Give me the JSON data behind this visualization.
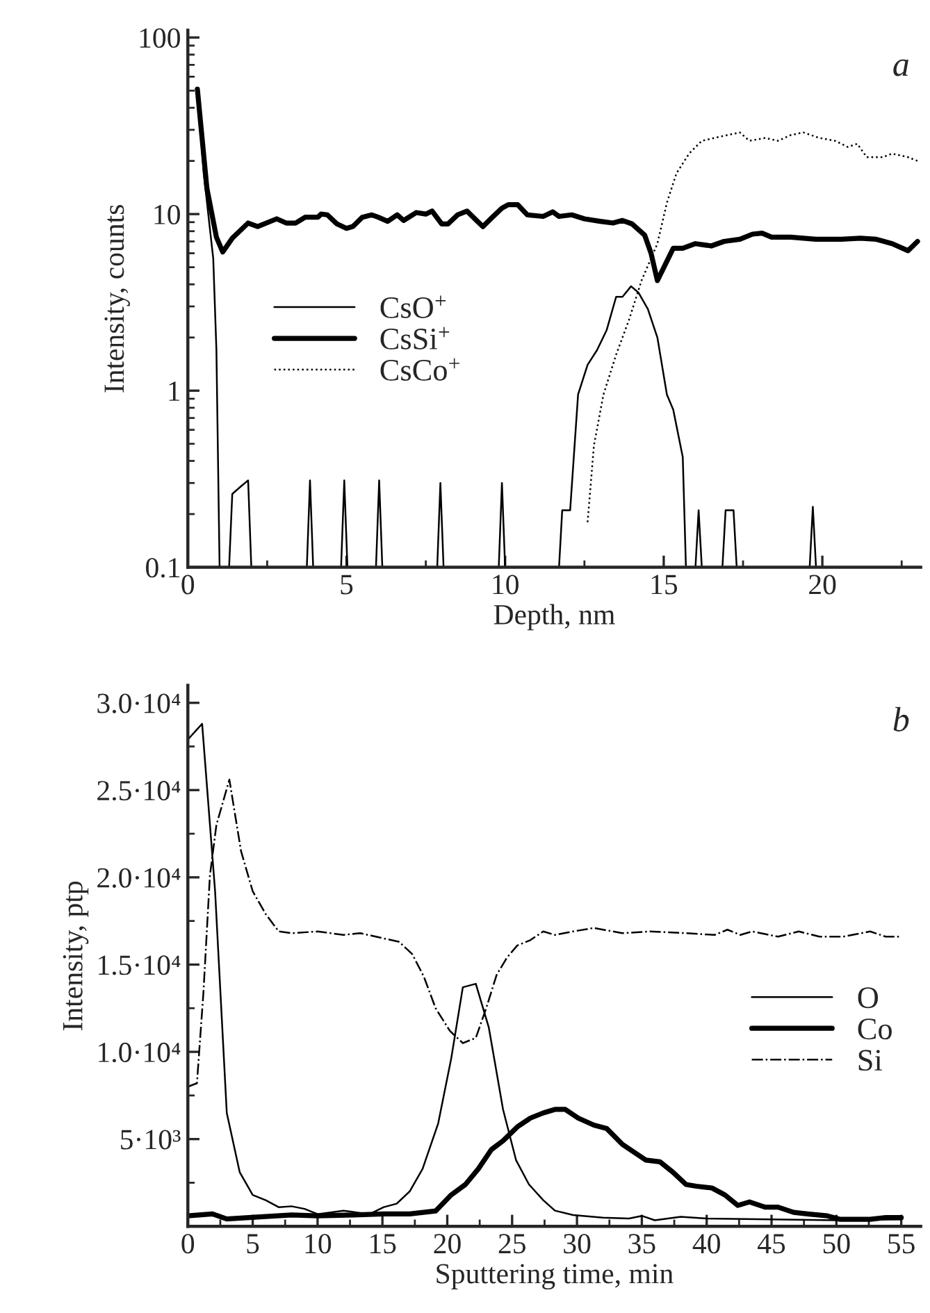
{
  "chart_data": [
    {
      "type": "line",
      "xlabel": "Depth, nm",
      "ylabel": "Intensity, counts",
      "log": "y",
      "xlim": [
        0,
        23.1
      ],
      "ylim": [
        0.1,
        110
      ],
      "xticks": [
        0,
        5,
        10,
        15,
        20
      ],
      "yticks": [
        0.1,
        1,
        10,
        100
      ],
      "legend": "center left",
      "grid": false,
      "annotations": [
        "a"
      ],
      "series": [
        {
          "name": "CsO$^{+}$",
          "color": "#000000",
          "line_style": "solid",
          "x": [
            0.3,
            0.5,
            0.8,
            0.9,
            1.0,
            1.3,
            1.4,
            1.7,
            1.9,
            2.0,
            3.75,
            3.85,
            3.95,
            4.83,
            4.93,
            5.03,
            5.93,
            6.03,
            6.13,
            7.86,
            7.96,
            8.06,
            9.8,
            9.9,
            10.0,
            11.7,
            11.8,
            12.05,
            12.3,
            12.6,
            12.9,
            13.2,
            13.5,
            13.7,
            13.97,
            14.2,
            14.5,
            14.8,
            15.1,
            15.3,
            15.6,
            15.7,
            16.0,
            16.1,
            16.2,
            16.85,
            16.95,
            17.2,
            17.3,
            19.6,
            19.7,
            19.8
          ],
          "values": [
            51,
            17,
            5.6,
            1.7,
            0.1,
            0.1,
            0.26,
            0.29,
            0.31,
            0.1,
            0.1,
            0.31,
            0.1,
            0.1,
            0.31,
            0.1,
            0.1,
            0.31,
            0.1,
            0.1,
            0.3,
            0.1,
            0.1,
            0.3,
            0.1,
            0.1,
            0.21,
            0.21,
            0.95,
            1.4,
            1.7,
            2.2,
            3.4,
            3.4,
            3.9,
            3.6,
            2.9,
            2.0,
            0.95,
            0.78,
            0.42,
            0.1,
            0.1,
            0.21,
            0.1,
            0.1,
            0.21,
            0.21,
            0.1,
            0.1,
            0.22,
            0.1
          ]
        },
        {
          "name": "CsSi$^{+}$",
          "color": "#000000",
          "line_style": "solid",
          "x": [
            0.3,
            0.6,
            0.9,
            1.1,
            1.4,
            1.9,
            2.2,
            2.8,
            3.1,
            3.4,
            3.7,
            4.1,
            4.2,
            4.4,
            4.7,
            5.0,
            5.2,
            5.5,
            5.8,
            6.0,
            6.3,
            6.6,
            6.8,
            7.2,
            7.5,
            7.7,
            8.0,
            8.2,
            8.5,
            8.8,
            9.1,
            9.3,
            9.6,
            9.9,
            10.1,
            10.4,
            10.7,
            11.2,
            11.5,
            11.7,
            12.1,
            12.5,
            13.0,
            13.4,
            13.7,
            14.0,
            14.4,
            14.6,
            14.8,
            15.3,
            15.6,
            16.0,
            16.5,
            16.9,
            17.4,
            17.8,
            18.1,
            18.4,
            19.0,
            19.8,
            20.6,
            21.2,
            21.7,
            22.2,
            22.7,
            23.0
          ],
          "values": [
            51,
            14,
            7.4,
            6.1,
            7.3,
            8.9,
            8.5,
            9.4,
            8.9,
            8.9,
            9.6,
            9.6,
            10,
            9.9,
            8.8,
            8.3,
            8.5,
            9.6,
            9.9,
            9.6,
            9.1,
            9.9,
            9.2,
            10.2,
            10,
            10.4,
            8.8,
            8.8,
            9.9,
            10.4,
            9.2,
            8.5,
            9.6,
            10.8,
            11.3,
            11.3,
            9.9,
            9.7,
            10.3,
            9.7,
            9.9,
            9.4,
            9.1,
            8.9,
            9.2,
            8.8,
            7.6,
            6.0,
            4.2,
            6.4,
            6.4,
            6.8,
            6.6,
            7.0,
            7.2,
            7.7,
            7.8,
            7.4,
            7.4,
            7.2,
            7.2,
            7.3,
            7.2,
            6.8,
            6.2,
            7.0
          ]
        },
        {
          "name": "CsCo$^{+}$",
          "color": "#000000",
          "line_style": "dotted",
          "x": [
            12.6,
            12.8,
            13.1,
            13.5,
            13.9,
            14.3,
            14.8,
            15.1,
            15.4,
            15.8,
            16.2,
            16.6,
            17.0,
            17.4,
            17.7,
            18.2,
            18.6,
            19.0,
            19.4,
            19.9,
            20.4,
            20.8,
            21.1,
            21.4,
            21.9,
            22.2,
            22.7,
            23.0
          ],
          "values": [
            0.18,
            0.49,
            0.95,
            1.6,
            2.5,
            4.2,
            6.8,
            11.6,
            17,
            22,
            26,
            27,
            28,
            29,
            26,
            27,
            26,
            28,
            29,
            27,
            26,
            24,
            25,
            21,
            21,
            22,
            21,
            20
          ]
        }
      ]
    },
    {
      "type": "line",
      "xlabel": "Sputtering time, min",
      "ylabel": "Intensity, ptp",
      "xlim": [
        0,
        56.5
      ],
      "ylim": [
        0,
        31000
      ],
      "xticks": [
        0,
        5,
        10,
        15,
        20,
        25,
        30,
        35,
        40,
        45,
        50,
        55
      ],
      "yticks": [
        {
          "value": 5000,
          "label": "5·10³"
        },
        {
          "value": 10000,
          "label": "1.0·10⁴"
        },
        {
          "value": 15000,
          "label": "1.5·10⁴"
        },
        {
          "value": 20000,
          "label": "2.0·10⁴"
        },
        {
          "value": 25000,
          "label": "2.5·10⁴"
        },
        {
          "value": 30000,
          "label": "3.0·10⁴"
        }
      ],
      "legend": "center right",
      "grid": false,
      "annotations": [
        "b"
      ],
      "series": [
        {
          "name": "O",
          "color": "#000000",
          "line_style": "solid",
          "x": [
            0,
            1.1,
            2.1,
            3.0,
            4.0,
            5.0,
            6.0,
            7.0,
            8.0,
            9.0,
            10.0,
            11,
            12,
            13,
            14,
            15.1,
            16.1,
            17.1,
            18.1,
            19.3,
            20.3,
            21.2,
            22.2,
            23.2,
            24.3,
            25.3,
            26.3,
            27.4,
            28.3,
            29.7,
            32,
            34,
            35,
            36,
            38,
            40,
            45,
            50,
            55
          ],
          "values": [
            27900,
            28800,
            19200,
            6500,
            3100,
            1800,
            1500,
            1100,
            1150,
            1000,
            700,
            800,
            900,
            800,
            700,
            1100,
            1300,
            2000,
            3300,
            5900,
            9600,
            13700,
            13900,
            11400,
            6700,
            3800,
            2400,
            1500,
            900,
            650,
            500,
            450,
            600,
            350,
            550,
            450,
            400,
            350,
            400
          ]
        },
        {
          "name": "Co",
          "color": "#000000",
          "line_style": "solid",
          "x": [
            0,
            1.9,
            3.0,
            6.0,
            8.0,
            10.0,
            12.8,
            15.1,
            17.1,
            19.1,
            20.3,
            21.4,
            22.4,
            23.4,
            24.3,
            25.4,
            26.4,
            27.4,
            28.3,
            29.1,
            30.1,
            31.3,
            32.3,
            33.5,
            34.3,
            35.3,
            36.4,
            37.4,
            38.4,
            39.2,
            40.4,
            41.4,
            42.4,
            43.3,
            44.5,
            45.5,
            46.7,
            47.9,
            49.3,
            50.3,
            52.6,
            53.8,
            55
          ],
          "values": [
            600,
            710,
            420,
            560,
            650,
            600,
            650,
            710,
            710,
            880,
            1800,
            2400,
            3300,
            4400,
            4900,
            5700,
            6200,
            6500,
            6700,
            6700,
            6200,
            5800,
            5600,
            4700,
            4300,
            3800,
            3700,
            3100,
            2400,
            2300,
            2200,
            1800,
            1200,
            1400,
            1100,
            1100,
            800,
            700,
            600,
            400,
            400,
            500,
            500
          ]
        },
        {
          "name": "Si",
          "color": "#000000",
          "line_style": "dashdot",
          "x": [
            0,
            0.7,
            1.2,
            1.7,
            2.2,
            3.2,
            4.1,
            5.0,
            6.0,
            7.0,
            8.0,
            10.0,
            12.0,
            13.3,
            15.1,
            16.3,
            17.3,
            18.2,
            19.1,
            20.2,
            21.2,
            22.2,
            23.0,
            23.8,
            24.6,
            25.4,
            26.4,
            27.4,
            28.3,
            29.7,
            31.3,
            33.5,
            35.6,
            38.4,
            40.6,
            41.6,
            42.6,
            43.5,
            45.5,
            47.1,
            48.7,
            50.5,
            52.6,
            53.8,
            55
          ],
          "values": [
            8000,
            8200,
            13400,
            20100,
            23000,
            25600,
            21500,
            19200,
            17900,
            16900,
            16800,
            16900,
            16700,
            16800,
            16500,
            16300,
            15600,
            14300,
            12500,
            11200,
            10500,
            10800,
            12500,
            14400,
            15400,
            16100,
            16400,
            16900,
            16700,
            16900,
            17100,
            16800,
            16900,
            16800,
            16700,
            17000,
            16700,
            16900,
            16600,
            16900,
            16600,
            16600,
            16900,
            16600,
            16600
          ]
        }
      ]
    }
  ]
}
